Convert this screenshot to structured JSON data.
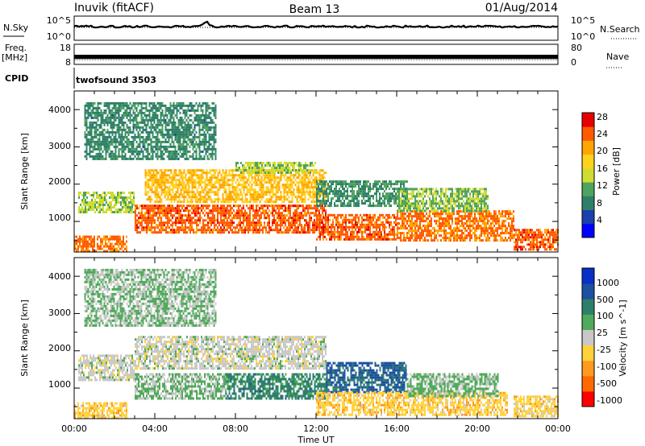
{
  "header": {
    "station": "Inuvik (fitACF)",
    "beam": "Beam 13",
    "date": "01/Aug/2014"
  },
  "param_panels": {
    "nsky_label": "N.Sky",
    "nsky_ticks": [
      "10^5",
      "10^0"
    ],
    "nsearch_label": "N.Search",
    "nsearch_ticks": [
      "10^5",
      "10^0"
    ],
    "freq_label": "Freq.",
    "freq_unit": "[MHz]",
    "freq_ticks": [
      "18",
      "8"
    ],
    "nave_label": "Nave",
    "nave_ticks": [
      "80",
      "0"
    ],
    "cpid_label": "CPID",
    "cpid_value": "twofsound 3503"
  },
  "x_axis": {
    "label": "Time UT",
    "ticks": [
      "00:00",
      "04:00",
      "08:00",
      "12:00",
      "16:00",
      "20:00",
      "00:00"
    ]
  },
  "chart_data": [
    {
      "type": "heatmap",
      "title": "",
      "xlabel": "Time UT",
      "ylabel": "Slant Range [km]",
      "xlim_hours": [
        0,
        24
      ],
      "ylim_km": [
        180,
        4500
      ],
      "yticks": [
        "1000",
        "2000",
        "3000",
        "4000"
      ],
      "colorbar": {
        "label": "Power [dB]",
        "ticks": [
          "28",
          "24",
          "20",
          "16",
          "12",
          "8",
          "4"
        ],
        "range": [
          0,
          30
        ],
        "colors": [
          "#0000ff",
          "#1c3fae",
          "#2e7f6a",
          "#4fa35c",
          "#cfdc32",
          "#ffd21e",
          "#ffa500",
          "#ff5a00",
          "#e80000"
        ]
      },
      "echo_regions": [
        {
          "t0": 0.0,
          "t1": 2.6,
          "r0": 220,
          "r1": 620,
          "value": 24
        },
        {
          "t0": 0.2,
          "t1": 3.0,
          "r0": 1250,
          "r1": 1800,
          "value": 14
        },
        {
          "t0": 3.0,
          "t1": 12.5,
          "r0": 700,
          "r1": 1450,
          "value": 25
        },
        {
          "t0": 3.5,
          "t1": 12.5,
          "r0": 1550,
          "r1": 2400,
          "value": 20
        },
        {
          "t0": 8.0,
          "t1": 12.0,
          "r0": 2300,
          "r1": 2600,
          "value": 14
        },
        {
          "t0": 12.0,
          "t1": 16.0,
          "r0": 500,
          "r1": 1200,
          "value": 25
        },
        {
          "t0": 12.0,
          "t1": 16.5,
          "r0": 1400,
          "r1": 2100,
          "value": 10
        },
        {
          "t0": 16.0,
          "t1": 21.8,
          "r0": 500,
          "r1": 1300,
          "value": 24
        },
        {
          "t0": 16.0,
          "t1": 20.5,
          "r0": 1300,
          "r1": 1900,
          "value": 13
        },
        {
          "t0": 21.8,
          "t1": 24.0,
          "r0": 220,
          "r1": 800,
          "value": 25
        },
        {
          "t0": 0.5,
          "t1": 7.0,
          "r0": 2700,
          "r1": 4200,
          "value": 9
        }
      ]
    },
    {
      "type": "heatmap",
      "title": "",
      "xlabel": "Time UT",
      "ylabel": "Slant Range [km]",
      "xlim_hours": [
        0,
        24
      ],
      "ylim_km": [
        180,
        4500
      ],
      "yticks": [
        "1000",
        "2000",
        "3000",
        "4000"
      ],
      "colorbar": {
        "label": "Velocity [m s^-1]",
        "ticks": [
          "1000",
          "500",
          "100",
          "25",
          "-25",
          "-100",
          "-500",
          "-1000"
        ],
        "range": [
          -1200,
          1200
        ],
        "colors": [
          "#ff0000",
          "#ff6a00",
          "#ff9a1e",
          "#ffd23c",
          "#c8c8c8",
          "#4faa5a",
          "#2e7f6a",
          "#1c50a0",
          "#0a2ec8"
        ]
      },
      "echo_regions": [
        {
          "t0": 0.0,
          "t1": 2.6,
          "r0": 220,
          "r1": 620,
          "value": -300
        },
        {
          "t0": 0.2,
          "t1": 3.0,
          "r0": 1250,
          "r1": 1900,
          "value": 0
        },
        {
          "t0": 3.0,
          "t1": 12.5,
          "r0": 1550,
          "r1": 2400,
          "value": 0
        },
        {
          "t0": 3.0,
          "t1": 7.5,
          "r0": 700,
          "r1": 1400,
          "value": 150
        },
        {
          "t0": 7.5,
          "t1": 12.5,
          "r0": 700,
          "r1": 1400,
          "value": 500
        },
        {
          "t0": 12.5,
          "t1": 16.5,
          "r0": 900,
          "r1": 1700,
          "value": 700
        },
        {
          "t0": 12.0,
          "t1": 21.5,
          "r0": 300,
          "r1": 900,
          "value": -300
        },
        {
          "t0": 16.5,
          "t1": 21.0,
          "r0": 800,
          "r1": 1400,
          "value": 200
        },
        {
          "t0": 21.8,
          "t1": 24.0,
          "r0": 220,
          "r1": 800,
          "value": -250
        },
        {
          "t0": 0.5,
          "t1": 7.0,
          "r0": 2700,
          "r1": 4200,
          "value": 150
        }
      ]
    }
  ]
}
